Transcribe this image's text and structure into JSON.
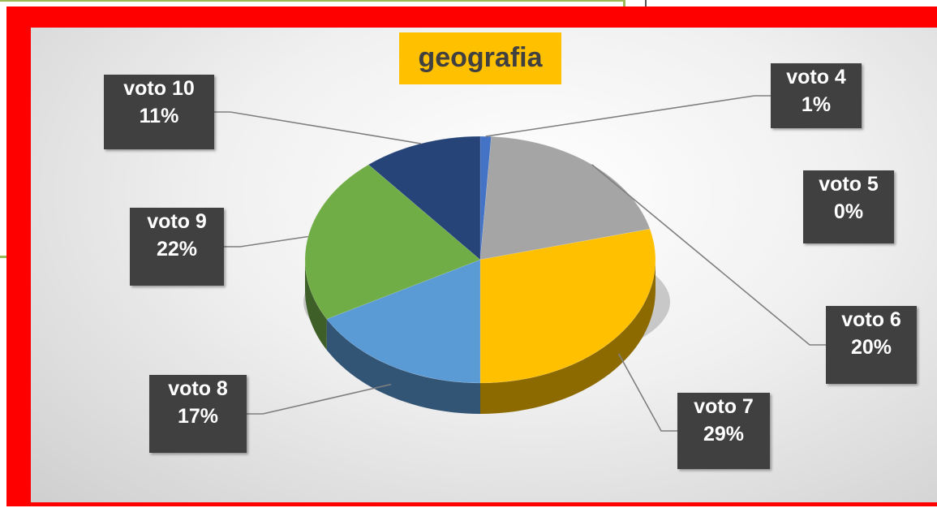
{
  "chart_data": {
    "type": "pie",
    "title": "geografia",
    "categories": [
      "voto 4",
      "voto 5",
      "voto 6",
      "voto 7",
      "voto 8",
      "voto 9",
      "voto 10"
    ],
    "values": [
      1,
      0,
      20,
      29,
      17,
      22,
      11
    ],
    "value_labels": [
      "1%",
      "0%",
      "20%",
      "29%",
      "17%",
      "22%",
      "11%"
    ],
    "colors": [
      "#4472c4",
      "#ed7d31",
      "#a5a5a5",
      "#ffc000",
      "#5b9bd5",
      "#70ad47",
      "#264478"
    ],
    "legend": "none",
    "style": "3d-pie"
  }
}
